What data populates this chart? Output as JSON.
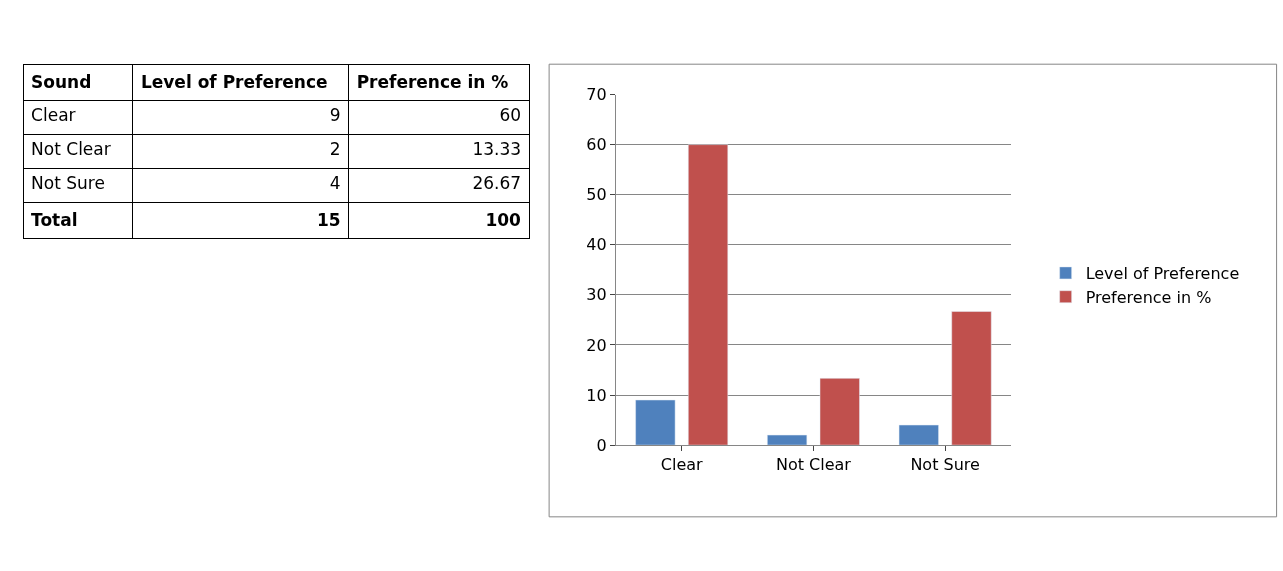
{
  "chart_data": [
    {
      "type": "other",
      "annotations": [
        "Sound",
        "Level of Preference",
        "Preference in %",
        "Clear",
        "9",
        "60",
        "Not Clear",
        "2",
        "13.33",
        "Not Sure",
        "4",
        "26.67",
        "Total",
        "15",
        "100"
      ]
    },
    {
      "type": "bar",
      "categories": [
        "Clear",
        "Not Clear",
        "Not Sure"
      ],
      "series": [
        {
          "name": "Level of Preference",
          "color": "#4f81bd",
          "values": [
            9,
            2,
            4
          ]
        },
        {
          "name": "Preference in %",
          "color": "#c0504d",
          "values": [
            60,
            13.33,
            26.67
          ]
        }
      ],
      "ylim": [
        0,
        70
      ],
      "yticks": [
        0,
        10,
        20,
        30,
        40,
        50,
        60,
        70
      ],
      "grid": "y",
      "legend": "right"
    }
  ]
}
